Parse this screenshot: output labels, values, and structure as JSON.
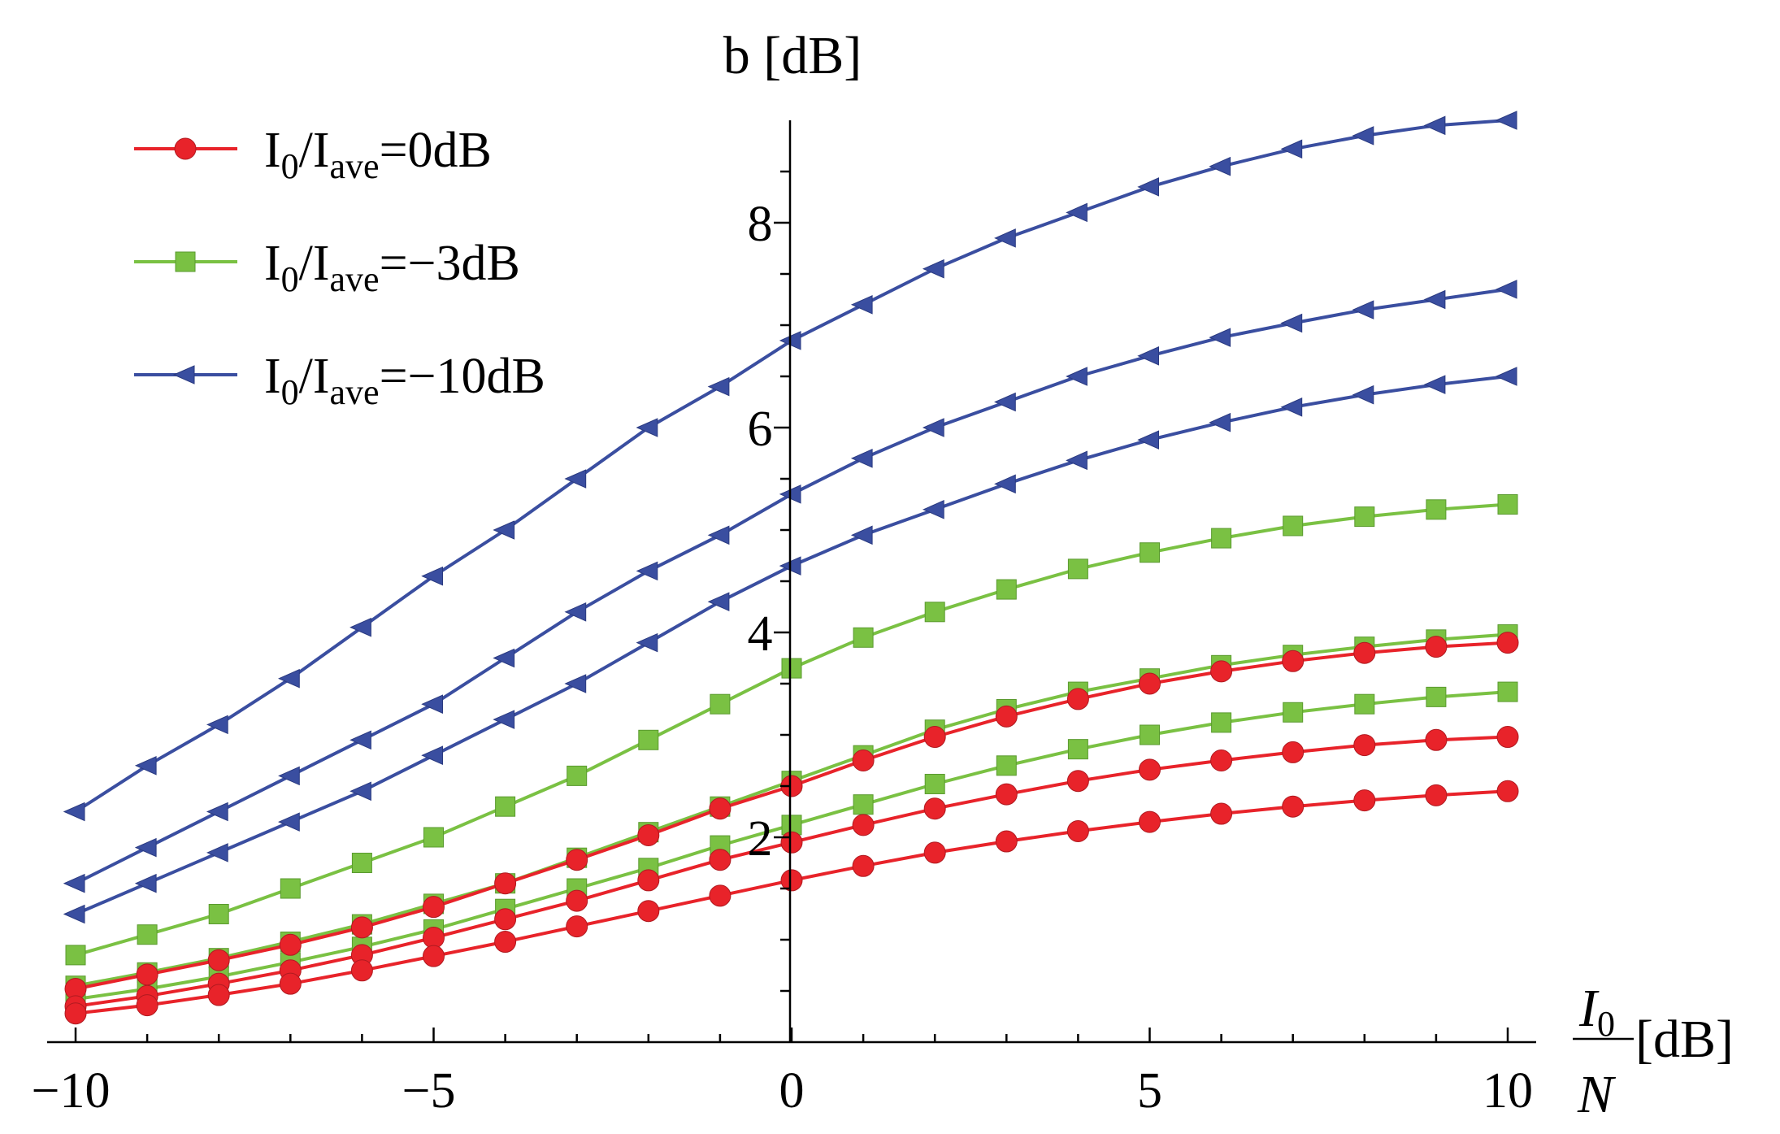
{
  "chart_data": {
    "type": "line",
    "title": "",
    "ylabel": "b [dB]",
    "xlabel": {
      "numerator": "I",
      "numerator_sub": "0",
      "denominator": "N",
      "unit": "[dB]"
    },
    "xlim": [
      -10,
      10
    ],
    "ylim": [
      -0.2,
      9.2
    ],
    "xticks": [
      -10,
      -5,
      0,
      5,
      10
    ],
    "xtick_labels": [
      "−10",
      "−5",
      "0",
      "5",
      "10"
    ],
    "yticks": [
      2,
      4,
      6,
      8
    ],
    "ytick_labels": [
      "2",
      "4",
      "6",
      "8"
    ],
    "legend": [
      {
        "main": "I",
        "sub1": "0",
        "mid": "/I",
        "sub2": "ave",
        "tail": "=0dB",
        "color": "#e8232a",
        "marker": "circle"
      },
      {
        "main": "I",
        "sub1": "0",
        "mid": "/I",
        "sub2": "ave",
        "tail": "=−3dB",
        "color": "#7ac143",
        "marker": "square"
      },
      {
        "main": "I",
        "sub1": "0",
        "mid": "/I",
        "sub2": "ave",
        "tail": "=−10dB",
        "color": "#3a4ea0",
        "marker": "triangle-left"
      }
    ],
    "x": [
      -10,
      -9,
      -8,
      -7,
      -6,
      -5,
      -4,
      -3,
      -2,
      -1,
      0,
      1,
      2,
      3,
      4,
      5,
      6,
      7,
      8,
      9,
      10
    ],
    "series": [
      {
        "name": "blue-1",
        "group": "-10dB",
        "color": "#3a4ea0",
        "marker": "triangle-left",
        "values": [
          2.25,
          2.7,
          3.1,
          3.55,
          4.05,
          4.55,
          5.0,
          5.5,
          6.0,
          6.4,
          6.85,
          7.2,
          7.55,
          7.85,
          8.1,
          8.35,
          8.55,
          8.72,
          8.85,
          8.95,
          9.0
        ]
      },
      {
        "name": "blue-2",
        "group": "-10dB",
        "color": "#3a4ea0",
        "marker": "triangle-left",
        "values": [
          1.55,
          1.9,
          2.25,
          2.6,
          2.95,
          3.3,
          3.75,
          4.2,
          4.6,
          4.95,
          5.35,
          5.7,
          6.0,
          6.25,
          6.5,
          6.7,
          6.88,
          7.02,
          7.15,
          7.25,
          7.35
        ]
      },
      {
        "name": "blue-3",
        "group": "-10dB",
        "color": "#3a4ea0",
        "marker": "triangle-left",
        "values": [
          1.25,
          1.55,
          1.85,
          2.15,
          2.45,
          2.8,
          3.15,
          3.5,
          3.9,
          4.3,
          4.65,
          4.95,
          5.2,
          5.45,
          5.68,
          5.88,
          6.05,
          6.2,
          6.32,
          6.42,
          6.5
        ]
      },
      {
        "name": "green-1",
        "group": "-3dB",
        "color": "#7ac143",
        "marker": "square",
        "values": [
          0.85,
          1.05,
          1.25,
          1.5,
          1.75,
          2.0,
          2.3,
          2.6,
          2.95,
          3.3,
          3.65,
          3.95,
          4.2,
          4.42,
          4.62,
          4.78,
          4.92,
          5.04,
          5.13,
          5.2,
          5.25
        ]
      },
      {
        "name": "green-2",
        "group": "-3dB",
        "color": "#7ac143",
        "marker": "square",
        "values": [
          0.55,
          0.68,
          0.82,
          0.98,
          1.15,
          1.35,
          1.55,
          1.8,
          2.05,
          2.3,
          2.55,
          2.8,
          3.05,
          3.25,
          3.42,
          3.55,
          3.68,
          3.78,
          3.86,
          3.93,
          3.98
        ]
      },
      {
        "name": "green-3",
        "group": "-3dB",
        "color": "#7ac143",
        "marker": "square",
        "values": [
          0.42,
          0.52,
          0.64,
          0.78,
          0.93,
          1.1,
          1.3,
          1.5,
          1.7,
          1.92,
          2.12,
          2.32,
          2.52,
          2.7,
          2.86,
          3.0,
          3.12,
          3.22,
          3.3,
          3.37,
          3.42
        ]
      },
      {
        "name": "red-1",
        "group": "0dB",
        "color": "#e8232a",
        "marker": "circle",
        "values": [
          0.52,
          0.66,
          0.8,
          0.95,
          1.12,
          1.32,
          1.55,
          1.78,
          2.02,
          2.28,
          2.5,
          2.75,
          2.98,
          3.18,
          3.35,
          3.5,
          3.62,
          3.72,
          3.8,
          3.86,
          3.9
        ]
      },
      {
        "name": "red-2",
        "group": "0dB",
        "color": "#e8232a",
        "marker": "circle",
        "values": [
          0.35,
          0.45,
          0.57,
          0.7,
          0.85,
          1.02,
          1.2,
          1.38,
          1.58,
          1.78,
          1.95,
          2.12,
          2.28,
          2.42,
          2.55,
          2.66,
          2.75,
          2.83,
          2.9,
          2.95,
          2.98
        ]
      },
      {
        "name": "red-3",
        "group": "0dB",
        "color": "#e8232a",
        "marker": "circle",
        "values": [
          0.28,
          0.36,
          0.46,
          0.57,
          0.7,
          0.84,
          0.98,
          1.13,
          1.28,
          1.43,
          1.58,
          1.72,
          1.85,
          1.96,
          2.06,
          2.15,
          2.23,
          2.3,
          2.36,
          2.41,
          2.45
        ]
      }
    ]
  }
}
